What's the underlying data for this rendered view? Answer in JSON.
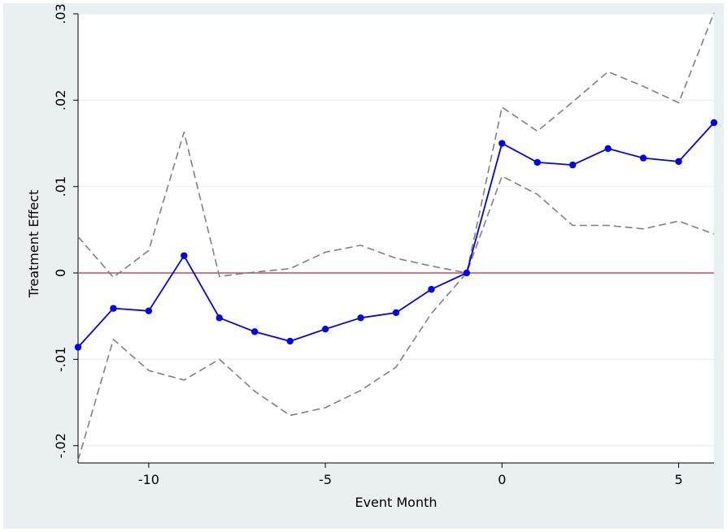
{
  "chart_data": {
    "type": "line",
    "title": "",
    "xlabel": "Event Month",
    "ylabel": "Treatment Effect",
    "xlim": [
      -12,
      6
    ],
    "ylim": [
      -0.022,
      0.03
    ],
    "x_ticks": [
      -10,
      -5,
      0,
      5
    ],
    "x_tick_labels": [
      "-10",
      "-5",
      "0",
      "5"
    ],
    "y_ticks": [
      -0.02,
      -0.01,
      0,
      0.01,
      0.02,
      0.03
    ],
    "y_tick_labels": [
      "-.02",
      "-.01",
      "0",
      ".01",
      ".02",
      ".03"
    ],
    "grid": true,
    "legend": "none",
    "reference_line": {
      "y": 0,
      "color": "#c8586a"
    },
    "x": [
      -12,
      -11,
      -10,
      -9,
      -8,
      -7,
      -6,
      -5,
      -4,
      -3,
      -2,
      -1,
      0,
      1,
      2,
      3,
      4,
      5,
      6
    ],
    "series": [
      {
        "role": "estimate",
        "color": "#0000ff",
        "style": "solid",
        "markers": true,
        "values": [
          -0.0086,
          -0.0041,
          -0.0044,
          0.002,
          -0.0052,
          -0.0068,
          -0.0079,
          -0.0065,
          -0.0052,
          -0.0046,
          -0.0019,
          0.0,
          0.015,
          0.0128,
          0.0125,
          0.0144,
          0.0133,
          0.0129,
          0.0174
        ]
      },
      {
        "role": "upper-ci",
        "color": "#808080",
        "style": "dashed",
        "markers": false,
        "values": [
          0.0042,
          -0.0005,
          0.0026,
          0.0163,
          -0.0004,
          0.0001,
          0.0005,
          0.0024,
          0.0032,
          0.0017,
          0.0008,
          0.0,
          0.0192,
          0.0164,
          0.0198,
          0.0233,
          0.0216,
          0.0197,
          0.0301
        ]
      },
      {
        "role": "lower-ci",
        "color": "#808080",
        "style": "dashed",
        "markers": false,
        "values": [
          -0.0217,
          -0.0077,
          -0.0113,
          -0.0124,
          -0.01,
          -0.0137,
          -0.0165,
          -0.0156,
          -0.0136,
          -0.0109,
          -0.0047,
          0.0,
          0.0112,
          0.0091,
          0.0055,
          0.0055,
          0.0051,
          0.006,
          0.0045
        ]
      }
    ]
  }
}
